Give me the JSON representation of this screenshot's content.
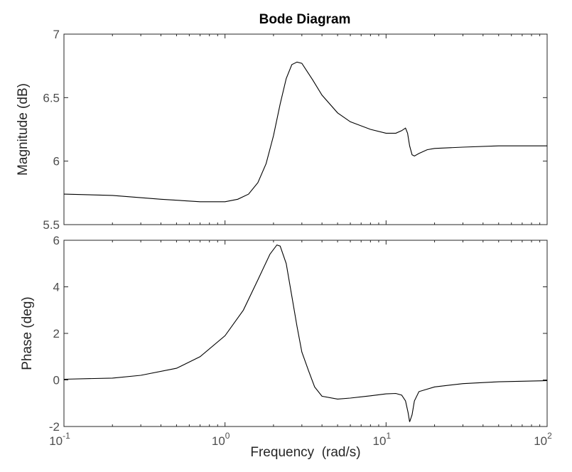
{
  "chart_data": {
    "type": "line",
    "title": "Bode Diagram",
    "xlabel": "Frequency  (rad/s)",
    "x_scale": "log",
    "xlim": [
      0.1,
      100
    ],
    "x_ticks": [
      0.1,
      1,
      10,
      100
    ],
    "x_tick_labels": [
      {
        "base": "10",
        "exp": "-1"
      },
      {
        "base": "10",
        "exp": "0"
      },
      {
        "base": "10",
        "exp": "1"
      },
      {
        "base": "10",
        "exp": "2"
      }
    ],
    "grid": false,
    "line_color": "#000000",
    "panels": [
      {
        "ylabel": "Magnitude (dB)",
        "ylim": [
          5.5,
          7
        ],
        "y_ticks": [
          5.5,
          6,
          6.5,
          7
        ],
        "y_tick_labels": [
          "5.5",
          "6",
          "6.5",
          "7"
        ],
        "x": [
          0.1,
          0.2,
          0.4,
          0.7,
          1.0,
          1.2,
          1.4,
          1.6,
          1.8,
          2.0,
          2.2,
          2.4,
          2.6,
          2.8,
          3.0,
          3.5,
          4.0,
          5.0,
          6.0,
          8.0,
          10.0,
          11.5,
          12.5,
          13.2,
          13.6,
          14.0,
          14.5,
          15.0,
          16.0,
          18.0,
          20.0,
          30.0,
          50.0,
          100.0
        ],
        "values": [
          5.74,
          5.73,
          5.7,
          5.68,
          5.68,
          5.7,
          5.74,
          5.83,
          5.98,
          6.2,
          6.45,
          6.65,
          6.76,
          6.78,
          6.77,
          6.64,
          6.52,
          6.38,
          6.31,
          6.25,
          6.22,
          6.22,
          6.24,
          6.26,
          6.22,
          6.12,
          6.05,
          6.04,
          6.06,
          6.09,
          6.1,
          6.11,
          6.12,
          6.12
        ]
      },
      {
        "ylabel": "Phase (deg)",
        "ylim": [
          -2,
          6
        ],
        "y_ticks": [
          -2,
          0,
          2,
          4,
          6
        ],
        "y_tick_labels": [
          "-2",
          "0",
          "2",
          "4",
          "6"
        ],
        "x": [
          0.1,
          0.2,
          0.3,
          0.5,
          0.7,
          1.0,
          1.3,
          1.6,
          1.9,
          2.1,
          2.2,
          2.4,
          2.6,
          2.8,
          3.0,
          3.3,
          3.6,
          4.0,
          5.0,
          6.0,
          8.0,
          10.0,
          11.5,
          12.5,
          13.2,
          13.7,
          14.0,
          14.5,
          15.0,
          16.0,
          20.0,
          30.0,
          50.0,
          100.0
        ],
        "values": [
          0.03,
          0.08,
          0.2,
          0.5,
          1.0,
          1.9,
          3.0,
          4.3,
          5.4,
          5.8,
          5.75,
          5.0,
          3.6,
          2.3,
          1.2,
          0.4,
          -0.3,
          -0.7,
          -0.82,
          -0.78,
          -0.68,
          -0.6,
          -0.58,
          -0.65,
          -0.9,
          -1.4,
          -1.8,
          -1.5,
          -0.9,
          -0.5,
          -0.3,
          -0.16,
          -0.08,
          -0.03
        ]
      }
    ]
  }
}
